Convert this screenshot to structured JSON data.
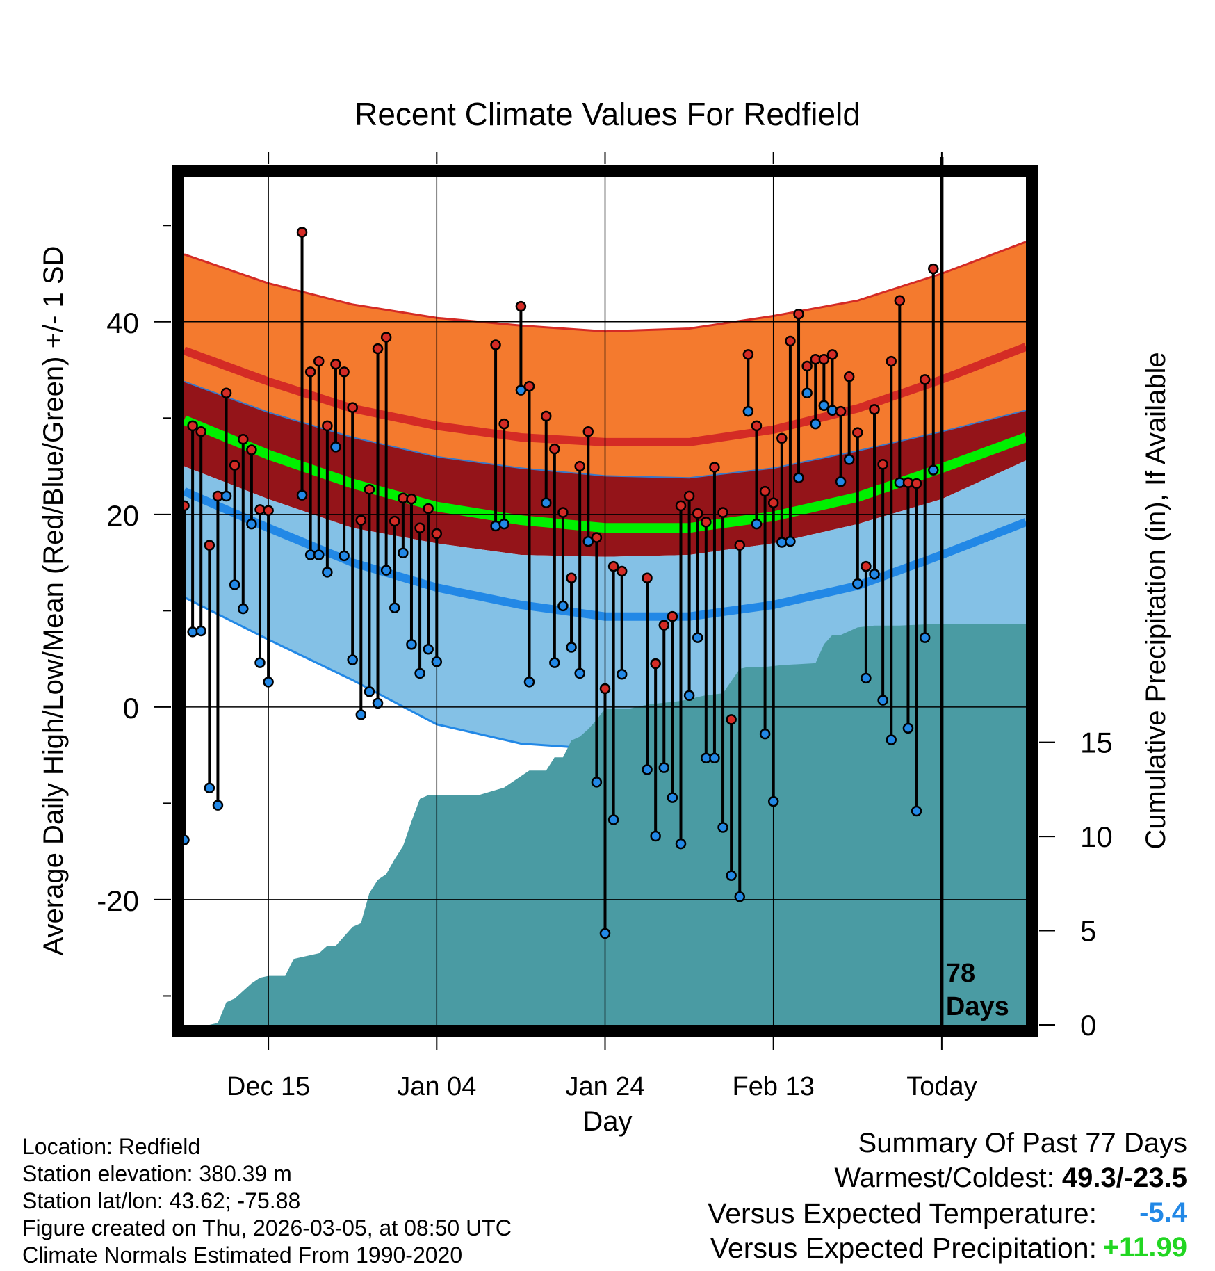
{
  "colors": {
    "high_band": "#F47A2E",
    "high_mean_line": "#D42B25",
    "mean_band": "#941419",
    "mean_line": "#00F000",
    "low_band": "#84C1E6",
    "low_mean_line": "#2288E6",
    "precip_fill": "#4A9BA3",
    "high_marker": "#D42B25",
    "low_marker": "#2288E6",
    "temp_delta": "#2288E6",
    "precip_delta": "#22D622"
  },
  "chart_data": {
    "type": "climate-range",
    "title": "Recent Climate Values For Redfield",
    "xlabel": "Day",
    "ylabel_left": "Average Daily High/Low/Mean (Red/Blue/Green) +/- 1 SD",
    "ylabel_right": "Cumulative Precipitation (in), If Available",
    "x_range_days": [
      0,
      100
    ],
    "ylim_left": [
      -33,
      55
    ],
    "yticks_left": [
      -20,
      0,
      20,
      40
    ],
    "yminorticks_left": [
      -30,
      -10,
      10,
      30,
      50
    ],
    "ylim_right": [
      0,
      45
    ],
    "yticks_right": [
      0,
      5,
      10,
      15
    ],
    "xticks": [
      {
        "day": 10,
        "label": "Dec 15"
      },
      {
        "day": 30,
        "label": "Jan 04"
      },
      {
        "day": 50,
        "label": "Jan 24"
      },
      {
        "day": 70,
        "label": "Feb 13"
      },
      {
        "day": 90,
        "label": "Today"
      }
    ],
    "today_day": 90,
    "today_annotation": [
      "78",
      "Days"
    ],
    "normals": {
      "days": [
        0,
        10,
        20,
        30,
        40,
        50,
        60,
        70,
        80,
        90,
        100
      ],
      "high_plus_sd": [
        47.0,
        44.0,
        41.8,
        40.4,
        39.6,
        39.0,
        39.3,
        40.6,
        42.2,
        45.0,
        48.3
      ],
      "high_mean": [
        37.0,
        33.8,
        31.0,
        29.2,
        28.0,
        27.5,
        27.5,
        28.8,
        31.0,
        34.0,
        37.4
      ],
      "mean_plus_sd": [
        33.8,
        30.6,
        28.0,
        26.0,
        24.8,
        24.0,
        23.8,
        24.8,
        26.6,
        28.6,
        30.8
      ],
      "mean": [
        29.8,
        26.2,
        23.2,
        20.8,
        19.4,
        18.6,
        18.6,
        19.8,
        21.8,
        24.8,
        28.0
      ],
      "mean_minus_sd": [
        25.0,
        21.6,
        18.6,
        17.0,
        15.8,
        15.6,
        15.8,
        17.0,
        19.0,
        21.6,
        25.6
      ],
      "low_mean": [
        22.4,
        18.6,
        15.0,
        12.4,
        10.6,
        9.4,
        9.4,
        10.6,
        12.6,
        15.8,
        19.2
      ],
      "low_minus_sd": [
        11.4,
        7.0,
        2.8,
        -1.8,
        -3.8,
        -4.4,
        -3.6,
        -1.6,
        0.6,
        3.6,
        7.0
      ]
    },
    "daily": [
      {
        "day": 0,
        "high": 20.9,
        "low": -13.8
      },
      {
        "day": 1,
        "high": 29.2,
        "low": 7.8
      },
      {
        "day": 2,
        "high": 28.6,
        "low": 7.9
      },
      {
        "day": 3,
        "high": 16.8,
        "low": -8.4
      },
      {
        "day": 4,
        "high": 21.9,
        "low": -10.2
      },
      {
        "day": 5,
        "high": 32.6,
        "low": 21.9
      },
      {
        "day": 6,
        "high": 25.1,
        "low": 12.7
      },
      {
        "day": 7,
        "high": 27.8,
        "low": 10.2
      },
      {
        "day": 8,
        "high": 26.7,
        "low": 19.0
      },
      {
        "day": 9,
        "high": 20.5,
        "low": 4.6
      },
      {
        "day": 10,
        "high": 20.4,
        "low": 2.6
      },
      {
        "day": 14,
        "high": 49.3,
        "low": 22.0
      },
      {
        "day": 15,
        "high": 34.8,
        "low": 15.8
      },
      {
        "day": 16,
        "high": 35.9,
        "low": 15.8
      },
      {
        "day": 17,
        "high": 29.2,
        "low": 14.0
      },
      {
        "day": 18,
        "high": 35.6,
        "low": 27.0
      },
      {
        "day": 19,
        "high": 34.8,
        "low": 15.7
      },
      {
        "day": 20,
        "high": 31.1,
        "low": 4.9
      },
      {
        "day": 21,
        "high": 19.4,
        "low": -0.8
      },
      {
        "day": 22,
        "high": 22.6,
        "low": 1.6
      },
      {
        "day": 23,
        "high": 37.2,
        "low": 0.4
      },
      {
        "day": 24,
        "high": 38.4,
        "low": 14.2
      },
      {
        "day": 25,
        "high": 19.3,
        "low": 10.3
      },
      {
        "day": 26,
        "high": 21.7,
        "low": 16.0
      },
      {
        "day": 27,
        "high": 21.6,
        "low": 6.5
      },
      {
        "day": 28,
        "high": 18.6,
        "low": 3.5
      },
      {
        "day": 29,
        "high": 20.6,
        "low": 6.0
      },
      {
        "day": 30,
        "high": 18.0,
        "low": 4.7
      },
      {
        "day": 37,
        "high": 37.6,
        "low": 18.8
      },
      {
        "day": 38,
        "high": 29.4,
        "low": 19.0
      },
      {
        "day": 40,
        "high": 41.6,
        "low": 32.9
      },
      {
        "day": 41,
        "high": 33.3,
        "low": 2.6
      },
      {
        "day": 43,
        "high": 30.2,
        "low": 21.2
      },
      {
        "day": 44,
        "high": 26.8,
        "low": 4.6
      },
      {
        "day": 45,
        "high": 20.2,
        "low": 10.5
      },
      {
        "day": 46,
        "high": 13.4,
        "low": 6.2
      },
      {
        "day": 47,
        "high": 25.0,
        "low": 3.5
      },
      {
        "day": 48,
        "high": 28.6,
        "low": 17.2
      },
      {
        "day": 49,
        "high": 17.6,
        "low": -7.8
      },
      {
        "day": 50,
        "high": 1.9,
        "low": -23.5
      },
      {
        "day": 51,
        "high": 14.6,
        "low": -11.7
      },
      {
        "day": 52,
        "high": 14.1,
        "low": 3.4
      },
      {
        "day": 55,
        "high": 13.4,
        "low": -6.5
      },
      {
        "day": 56,
        "high": 4.5,
        "low": -13.4
      },
      {
        "day": 57,
        "high": 8.5,
        "low": -6.3
      },
      {
        "day": 58,
        "high": 9.4,
        "low": -9.4
      },
      {
        "day": 59,
        "high": 20.9,
        "low": -14.2
      },
      {
        "day": 60,
        "high": 21.9,
        "low": 1.2
      },
      {
        "day": 61,
        "high": 20.1,
        "low": 7.2
      },
      {
        "day": 62,
        "high": 19.2,
        "low": -5.3
      },
      {
        "day": 63,
        "high": 24.9,
        "low": -5.3
      },
      {
        "day": 64,
        "high": 20.2,
        "low": -12.5
      },
      {
        "day": 65,
        "high": -1.3,
        "low": -17.5
      },
      {
        "day": 66,
        "high": 16.8,
        "low": -19.7
      },
      {
        "day": 67,
        "high": 36.6,
        "low": 30.7
      },
      {
        "day": 68,
        "high": 29.2,
        "low": 19.0
      },
      {
        "day": 69,
        "high": 22.4,
        "low": -2.8
      },
      {
        "day": 70,
        "high": 21.2,
        "low": -9.8
      },
      {
        "day": 71,
        "high": 27.9,
        "low": 17.1
      },
      {
        "day": 72,
        "high": 38.0,
        "low": 17.2
      },
      {
        "day": 73,
        "high": 40.8,
        "low": 23.8
      },
      {
        "day": 74,
        "high": 35.4,
        "low": 32.6
      },
      {
        "day": 75,
        "high": 36.1,
        "low": 29.4
      },
      {
        "day": 76,
        "high": 36.1,
        "low": 31.3
      },
      {
        "day": 77,
        "high": 36.6,
        "low": 30.8
      },
      {
        "day": 78,
        "high": 30.7,
        "low": 23.4
      },
      {
        "day": 79,
        "high": 34.3,
        "low": 25.7
      },
      {
        "day": 80,
        "high": 28.5,
        "low": 12.8
      },
      {
        "day": 81,
        "high": 14.6,
        "low": 3.0
      },
      {
        "day": 82,
        "high": 30.9,
        "low": 13.8
      },
      {
        "day": 83,
        "high": 25.2,
        "low": 0.7
      },
      {
        "day": 84,
        "high": 35.9,
        "low": -3.4
      },
      {
        "day": 85,
        "high": 42.2,
        "low": 23.3
      },
      {
        "day": 86,
        "high": 23.3,
        "low": -2.2
      },
      {
        "day": 87,
        "high": 23.2,
        "low": -10.8
      },
      {
        "day": 88,
        "high": 34.0,
        "low": 7.2
      },
      {
        "day": 89,
        "high": 45.5,
        "low": 24.6
      }
    ],
    "precip_cumulative": {
      "days": [
        0,
        3,
        4,
        5,
        6,
        7,
        8,
        9,
        10,
        12,
        13,
        14,
        16,
        17,
        18,
        20,
        21,
        22,
        23,
        24,
        25,
        26,
        27,
        28,
        29,
        30,
        35,
        38,
        40,
        41,
        43,
        44,
        45,
        46,
        47,
        48,
        49,
        50,
        51,
        53,
        55,
        57,
        59,
        62,
        64,
        66,
        67,
        68,
        69,
        71,
        75,
        76,
        77,
        78,
        80,
        82,
        85,
        90,
        100
      ],
      "values": [
        0,
        0,
        0.1,
        1.2,
        1.4,
        1.8,
        2.2,
        2.5,
        2.6,
        2.6,
        3.5,
        3.6,
        3.8,
        4.2,
        4.2,
        5.2,
        5.4,
        7.0,
        7.7,
        8.0,
        8.8,
        9.5,
        10.8,
        12.0,
        12.2,
        12.2,
        12.2,
        12.6,
        13.2,
        13.5,
        13.5,
        14.2,
        14.2,
        15.1,
        15.3,
        15.7,
        16.2,
        16.8,
        16.8,
        16.8,
        17.0,
        17.1,
        17.2,
        17.5,
        17.6,
        18.9,
        19.0,
        19.0,
        19.0,
        19.1,
        19.2,
        20.2,
        20.7,
        20.7,
        21.1,
        21.2,
        21.2,
        21.3,
        21.3
      ]
    }
  },
  "footer": {
    "location": "Location: Redfield",
    "elevation": "Station elevation: 380.39 m",
    "latlon": "Station lat/lon: 43.62; -75.88",
    "created": "Figure created on Thu, 2026-03-05, at 08:50 UTC",
    "normals": "Climate Normals Estimated From 1990-2020"
  },
  "summary": {
    "heading": "Summary Of Past 77 Days",
    "warmest_label": "Warmest/Coldest: ",
    "warmest_value": "49.3/-23.5",
    "temp_label": "Versus Expected Temperature:",
    "temp_value": "-5.4",
    "precip_label": "Versus Expected Precipitation:",
    "precip_value": "+11.99"
  }
}
